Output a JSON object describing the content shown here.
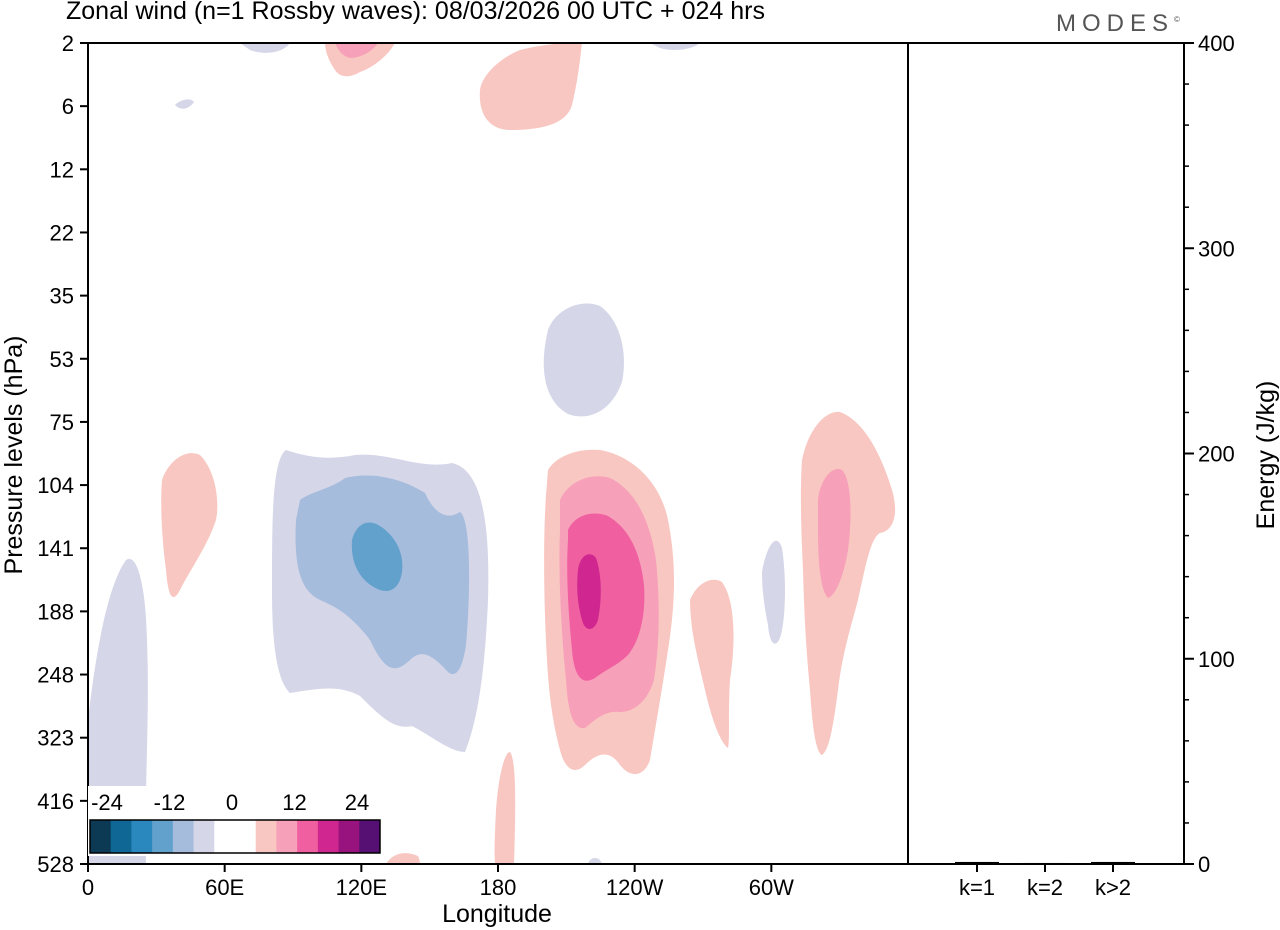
{
  "header": {
    "title": "Zonal wind (n=1 Rossby waves):  08/03/2026  00 UTC  + 024 hrs",
    "brand": "MODES",
    "brand_mark": "©"
  },
  "chart_data": [
    {
      "type": "heatmap",
      "title": "Zonal wind (n=1 Rossby waves):  08/03/2026  00 UTC  + 024 hrs",
      "xlabel": "Longitude",
      "ylabel": "Pressure levels (hPa)",
      "x_ticks": [
        "0",
        "60E",
        "120E",
        "180",
        "120W",
        "60W"
      ],
      "x_tick_degrees": [
        0,
        60,
        120,
        180,
        240,
        300
      ],
      "xlim": [
        0,
        360
      ],
      "y_levels": [
        "2",
        "6",
        "12",
        "22",
        "35",
        "53",
        "75",
        "104",
        "141",
        "188",
        "248",
        "323",
        "416",
        "528"
      ],
      "colorbar": {
        "labels": [
          "-24",
          "-12",
          "0",
          "12",
          "24"
        ],
        "colors": [
          "#0c3a55",
          "#0f6796",
          "#2a88be",
          "#63a1cd",
          "#a6bcdc",
          "#d5d6e8",
          "#ffffff",
          "#ffffff",
          "#f9c7c1",
          "#f7a0b9",
          "#f05fa0",
          "#cf2690",
          "#99137e",
          "#560f72"
        ]
      },
      "anomalies": [
        {
          "sign": "negative",
          "lon_range": [
            8,
            25
          ],
          "level_range": [
            "141",
            "528"
          ],
          "peak": "weak"
        },
        {
          "sign": "negative",
          "lon_range": [
            80,
            175
          ],
          "level_range": [
            "104",
            "323"
          ],
          "peak": "about -12"
        },
        {
          "sign": "negative",
          "lon_range": [
            198,
            235
          ],
          "level_range": [
            "35",
            "75"
          ],
          "peak": "weak"
        },
        {
          "sign": "positive",
          "lon_range": [
            32,
            58
          ],
          "level_range": [
            "104",
            "188"
          ],
          "peak": "weak"
        },
        {
          "sign": "positive",
          "lon_range": [
            200,
            260
          ],
          "level_range": [
            "104",
            "323"
          ],
          "peak": "about 18"
        },
        {
          "sign": "positive",
          "lon_range": [
            265,
            285
          ],
          "level_range": [
            "188",
            "323"
          ],
          "peak": "weak"
        },
        {
          "sign": "positive",
          "lon_range": [
            315,
            355
          ],
          "level_range": [
            "75",
            "323"
          ],
          "peak": "about 6"
        },
        {
          "sign": "positive",
          "lon_range": [
            172,
            220
          ],
          "level_range": [
            "2",
            "12"
          ],
          "peak": "weak"
        },
        {
          "sign": "positive",
          "lon_range": [
            105,
            130
          ],
          "level_range": [
            "2",
            "6"
          ],
          "peak": "about 6"
        }
      ]
    },
    {
      "type": "bar",
      "title": "",
      "xlabel": "",
      "ylabel": "Energy (J/kg)",
      "categories": [
        "k=1",
        "k=2",
        "k>2"
      ],
      "values": [
        1,
        0.5,
        1
      ],
      "ylim": [
        0,
        400
      ],
      "y_ticks": [
        "0",
        "100",
        "200",
        "300",
        "400"
      ]
    }
  ]
}
